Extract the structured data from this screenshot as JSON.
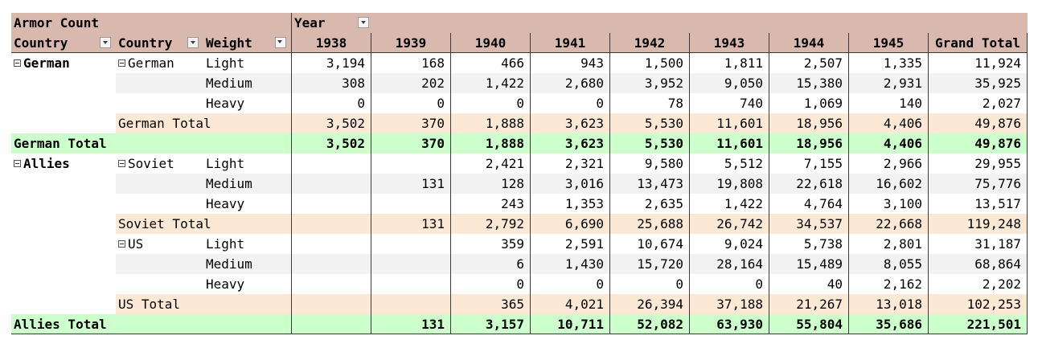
{
  "pivot": {
    "value_label": "Armor Count",
    "column_field": "Year",
    "row_headers": [
      "Country",
      "Country",
      "Weight"
    ],
    "years": [
      "1938",
      "1939",
      "1940",
      "1941",
      "1942",
      "1943",
      "1944",
      "1945"
    ],
    "grand_total_label": "Grand Total",
    "colors": {
      "header": "#d9b8ad",
      "stripe": "#f2f2f2",
      "subtotal": "#fbe9d5",
      "grand_group": "#ccffcc"
    },
    "rows": [
      {
        "kind": "detail",
        "c1": "German",
        "c2": "German",
        "w": "Light",
        "vals": [
          "3,194",
          "168",
          "466",
          "943",
          "1,500",
          "1,811",
          "2,507",
          "1,335"
        ],
        "total": "11,924"
      },
      {
        "kind": "detail",
        "c1": "",
        "c2": "",
        "w": "Medium",
        "vals": [
          "308",
          "202",
          "1,422",
          "2,680",
          "3,952",
          "9,050",
          "15,380",
          "2,931"
        ],
        "total": "35,925"
      },
      {
        "kind": "detail",
        "c1": "",
        "c2": "",
        "w": "Heavy",
        "vals": [
          "0",
          "0",
          "0",
          "0",
          "78",
          "740",
          "1,069",
          "140"
        ],
        "total": "2,027"
      },
      {
        "kind": "subtotal",
        "label": "German Total",
        "vals": [
          "3,502",
          "370",
          "1,888",
          "3,623",
          "5,530",
          "11,601",
          "18,956",
          "4,406"
        ],
        "total": "49,876"
      },
      {
        "kind": "group",
        "label": "German Total",
        "vals": [
          "3,502",
          "370",
          "1,888",
          "3,623",
          "5,530",
          "11,601",
          "18,956",
          "4,406"
        ],
        "total": "49,876"
      },
      {
        "kind": "detail",
        "c1": "Allies",
        "c2": "Soviet",
        "w": "Light",
        "vals": [
          "",
          "",
          "2,421",
          "2,321",
          "9,580",
          "5,512",
          "7,155",
          "2,966"
        ],
        "total": "29,955"
      },
      {
        "kind": "detail",
        "c1": "",
        "c2": "",
        "w": "Medium",
        "vals": [
          "",
          "131",
          "128",
          "3,016",
          "13,473",
          "19,808",
          "22,618",
          "16,602"
        ],
        "total": "75,776"
      },
      {
        "kind": "detail",
        "c1": "",
        "c2": "",
        "w": "Heavy",
        "vals": [
          "",
          "",
          "243",
          "1,353",
          "2,635",
          "1,422",
          "4,764",
          "3,100"
        ],
        "total": "13,517"
      },
      {
        "kind": "subtotal",
        "label": "Soviet Total",
        "vals": [
          "",
          "131",
          "2,792",
          "6,690",
          "25,688",
          "26,742",
          "34,537",
          "22,668"
        ],
        "total": "119,248"
      },
      {
        "kind": "detail",
        "c1": "",
        "c2": "US",
        "w": "Light",
        "vals": [
          "",
          "",
          "359",
          "2,591",
          "10,674",
          "9,024",
          "5,738",
          "2,801"
        ],
        "total": "31,187"
      },
      {
        "kind": "detail",
        "c1": "",
        "c2": "",
        "w": "Medium",
        "vals": [
          "",
          "",
          "6",
          "1,430",
          "15,720",
          "28,164",
          "15,489",
          "8,055"
        ],
        "total": "68,864"
      },
      {
        "kind": "detail",
        "c1": "",
        "c2": "",
        "w": "Heavy",
        "vals": [
          "",
          "",
          "0",
          "0",
          "0",
          "0",
          "40",
          "2,162"
        ],
        "total": "2,202"
      },
      {
        "kind": "subtotal",
        "label": "US Total",
        "vals": [
          "",
          "",
          "365",
          "4,021",
          "26,394",
          "37,188",
          "21,267",
          "13,018"
        ],
        "total": "102,253"
      },
      {
        "kind": "group",
        "label": "Allies Total",
        "vals": [
          "",
          "131",
          "3,157",
          "10,711",
          "52,082",
          "63,930",
          "55,804",
          "35,686"
        ],
        "total": "221,501"
      }
    ]
  }
}
